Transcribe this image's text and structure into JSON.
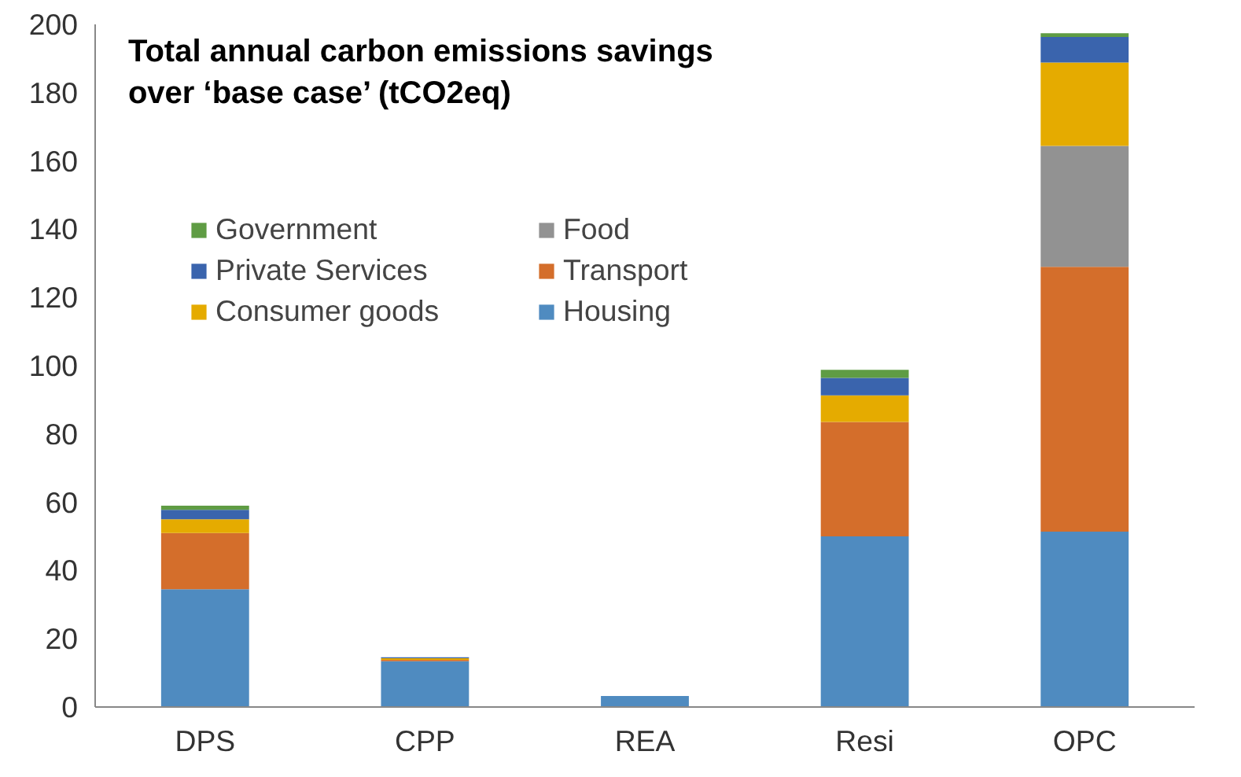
{
  "chart_data": {
    "type": "bar",
    "stacked": true,
    "title": "Total annual carbon emissions savings\nover ‘base case’ (tCO2eq)",
    "categories": [
      "DPS",
      "CPP",
      "REA",
      "Resi",
      "OPC"
    ],
    "series": [
      {
        "name": "Housing",
        "color": "#4f8bc0",
        "values": [
          34.5,
          13.4,
          3.2,
          50,
          51.4
        ]
      },
      {
        "name": "Transport",
        "color": "#d46e2b",
        "values": [
          16.5,
          0.4,
          0,
          33.5,
          77.6
        ]
      },
      {
        "name": "Food",
        "color": "#929292",
        "values": [
          0,
          0,
          0,
          0,
          35.4
        ]
      },
      {
        "name": "Consumer goods",
        "color": "#e5ab00",
        "values": [
          4,
          0.5,
          0,
          7.8,
          24.4
        ]
      },
      {
        "name": "Private Services",
        "color": "#3a64ad",
        "values": [
          2.8,
          0.3,
          0,
          5.1,
          7.5
        ]
      },
      {
        "name": "Government",
        "color": "#5f9c44",
        "values": [
          1.2,
          0,
          0,
          2.4,
          1.1
        ]
      }
    ],
    "ylim": [
      0,
      200
    ],
    "yticks": [
      0,
      20,
      40,
      60,
      80,
      100,
      120,
      140,
      160,
      180,
      200
    ],
    "grid": false,
    "legend": "top left"
  }
}
